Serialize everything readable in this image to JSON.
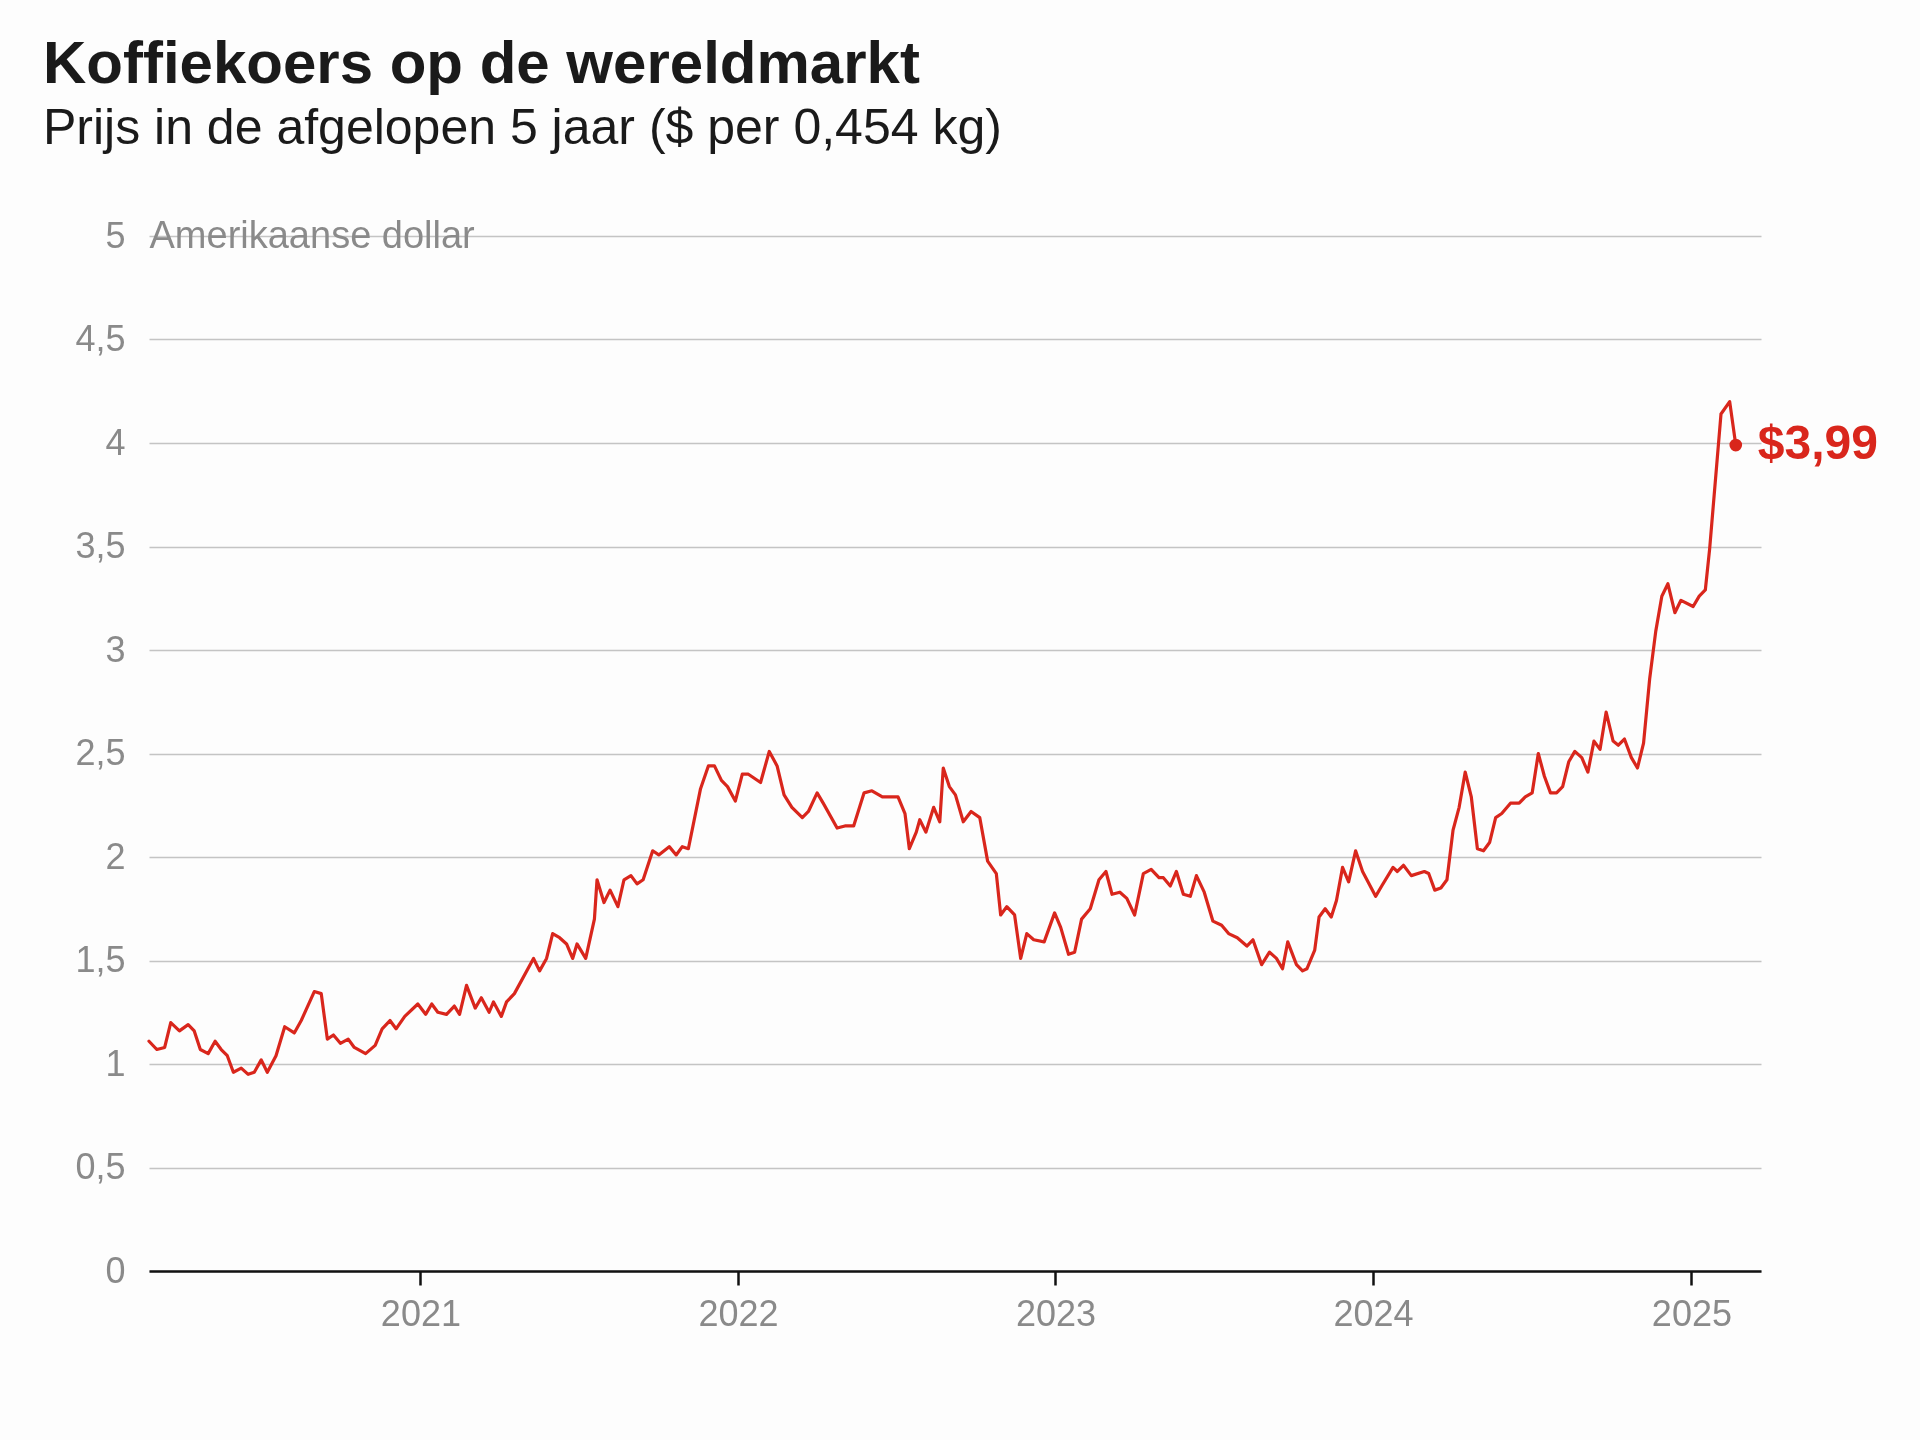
{
  "chart_data": {
    "type": "line",
    "title": "Koffiekoers op de wereldmarkt",
    "subtitle": "Prijs in de afgelopen 5 jaar ($ per 0,454 kg)",
    "ylabel": "Amerikaanse dollar",
    "x": [
      "2020-02-24",
      "2020-03-04",
      "2020-03-13",
      "2020-03-20",
      "2020-03-30",
      "2020-04-09",
      "2020-04-16",
      "2020-04-23",
      "2020-05-02",
      "2020-05-10",
      "2020-05-17",
      "2020-05-24",
      "2020-05-31",
      "2020-06-09",
      "2020-06-17",
      "2020-06-24",
      "2020-07-02",
      "2020-07-09",
      "2020-07-19",
      "2020-07-29",
      "2020-08-09",
      "2020-08-17",
      "2020-09-01",
      "2020-09-09",
      "2020-09-16",
      "2020-09-23",
      "2020-10-01",
      "2020-10-10",
      "2020-10-17",
      "2020-10-30",
      "2020-11-10",
      "2020-11-18",
      "2020-11-27",
      "2020-12-04",
      "2020-12-14",
      "2020-12-29",
      "2021-01-07",
      "2021-01-14",
      "2021-01-21",
      "2021-01-31",
      "2021-02-09",
      "2021-02-15",
      "2021-02-23",
      "2021-03-05",
      "2021-03-12",
      "2021-03-21",
      "2021-03-26",
      "2021-04-04",
      "2021-04-10",
      "2021-04-19",
      "2021-05-11",
      "2021-05-18",
      "2021-05-26",
      "2021-06-02",
      "2021-06-10",
      "2021-06-18",
      "2021-06-25",
      "2021-06-30",
      "2021-07-10",
      "2021-07-20",
      "2021-07-23",
      "2021-07-31",
      "2021-08-07",
      "2021-08-16",
      "2021-08-23",
      "2021-08-31",
      "2021-09-07",
      "2021-09-14",
      "2021-09-25",
      "2021-10-02",
      "2021-10-14",
      "2021-10-22",
      "2021-10-29",
      "2021-11-05",
      "2021-11-19",
      "2021-11-28",
      "2021-12-05",
      "2021-12-13",
      "2021-12-20",
      "2021-12-29",
      "2022-01-06",
      "2022-01-13",
      "2022-01-27",
      "2022-02-06",
      "2022-02-15",
      "2022-02-23",
      "2022-03-04",
      "2022-03-16",
      "2022-03-23",
      "2022-04-02",
      "2022-04-09",
      "2022-04-25",
      "2022-05-04",
      "2022-05-14",
      "2022-05-26",
      "2022-06-04",
      "2022-06-16",
      "2022-07-04",
      "2022-07-12",
      "2022-07-17",
      "2022-07-25",
      "2022-07-29",
      "2022-08-05",
      "2022-08-14",
      "2022-08-21",
      "2022-08-25",
      "2022-09-01",
      "2022-09-08",
      "2022-09-17",
      "2022-09-26",
      "2022-10-06",
      "2022-10-15",
      "2022-10-25",
      "2022-10-30",
      "2022-11-06",
      "2022-11-15",
      "2022-11-22",
      "2022-11-29",
      "2022-12-07",
      "2022-12-19",
      "2022-12-31",
      "2023-01-07",
      "2023-01-16",
      "2023-01-23",
      "2023-01-31",
      "2023-02-10",
      "2023-02-20",
      "2023-02-28",
      "2023-03-07",
      "2023-03-16",
      "2023-03-24",
      "2023-04-02",
      "2023-04-12",
      "2023-04-21",
      "2023-04-30",
      "2023-05-05",
      "2023-05-13",
      "2023-05-20",
      "2023-05-28",
      "2023-06-05",
      "2023-06-12",
      "2023-06-21",
      "2023-07-01",
      "2023-07-11",
      "2023-07-19",
      "2023-07-29",
      "2023-08-09",
      "2023-08-16",
      "2023-08-26",
      "2023-09-04",
      "2023-09-12",
      "2023-09-19",
      "2023-09-25",
      "2023-10-05",
      "2023-10-12",
      "2023-10-17",
      "2023-10-26",
      "2023-10-31",
      "2023-11-07",
      "2023-11-14",
      "2023-11-20",
      "2023-11-27",
      "2023-12-04",
      "2023-12-12",
      "2023-12-20",
      "2024-01-04",
      "2024-01-11",
      "2024-01-24",
      "2024-01-29",
      "2024-02-05",
      "2024-02-14",
      "2024-02-29",
      "2024-03-05",
      "2024-03-12",
      "2024-03-19",
      "2024-03-26",
      "2024-04-02",
      "2024-04-09",
      "2024-04-16",
      "2024-04-23",
      "2024-04-30",
      "2024-05-07",
      "2024-05-14",
      "2024-05-21",
      "2024-05-28",
      "2024-06-07",
      "2024-06-17",
      "2024-06-24",
      "2024-07-02",
      "2024-07-09",
      "2024-07-16",
      "2024-07-23",
      "2024-07-30",
      "2024-08-06",
      "2024-08-13",
      "2024-08-20",
      "2024-08-28",
      "2024-09-04",
      "2024-09-11",
      "2024-09-18",
      "2024-09-25",
      "2024-10-03",
      "2024-10-09",
      "2024-10-16",
      "2024-10-24",
      "2024-10-31",
      "2024-11-07",
      "2024-11-14",
      "2024-11-21",
      "2024-11-28",
      "2024-12-05",
      "2024-12-13",
      "2024-12-20",
      "2025-01-03",
      "2025-01-10",
      "2025-01-17",
      "2025-01-22",
      "2025-02-04",
      "2025-02-14",
      "2025-02-21"
    ],
    "values": [
      1.11,
      1.07,
      1.08,
      1.2,
      1.16,
      1.19,
      1.16,
      1.07,
      1.05,
      1.11,
      1.07,
      1.04,
      0.96,
      0.98,
      0.95,
      0.96,
      1.02,
      0.96,
      1.04,
      1.18,
      1.15,
      1.21,
      1.35,
      1.34,
      1.12,
      1.14,
      1.1,
      1.12,
      1.08,
      1.05,
      1.09,
      1.17,
      1.21,
      1.17,
      1.23,
      1.29,
      1.24,
      1.29,
      1.25,
      1.24,
      1.28,
      1.24,
      1.38,
      1.27,
      1.32,
      1.25,
      1.3,
      1.23,
      1.3,
      1.34,
      1.51,
      1.45,
      1.51,
      1.63,
      1.61,
      1.58,
      1.51,
      1.58,
      1.51,
      1.7,
      1.89,
      1.78,
      1.84,
      1.76,
      1.89,
      1.91,
      1.87,
      1.89,
      2.03,
      2.01,
      2.05,
      2.01,
      2.05,
      2.04,
      2.33,
      2.44,
      2.44,
      2.37,
      2.34,
      2.27,
      2.4,
      2.4,
      2.36,
      2.51,
      2.44,
      2.3,
      2.24,
      2.19,
      2.22,
      2.31,
      2.26,
      2.14,
      2.15,
      2.15,
      2.31,
      2.32,
      2.29,
      2.29,
      2.21,
      2.04,
      2.12,
      2.18,
      2.12,
      2.24,
      2.17,
      2.43,
      2.34,
      2.3,
      2.17,
      2.22,
      2.19,
      1.98,
      1.92,
      1.72,
      1.76,
      1.72,
      1.51,
      1.63,
      1.6,
      1.59,
      1.73,
      1.66,
      1.53,
      1.54,
      1.7,
      1.75,
      1.89,
      1.93,
      1.82,
      1.83,
      1.8,
      1.72,
      1.92,
      1.94,
      1.9,
      1.9,
      1.86,
      1.93,
      1.82,
      1.81,
      1.91,
      1.83,
      1.69,
      1.67,
      1.63,
      1.61,
      1.57,
      1.6,
      1.48,
      1.54,
      1.51,
      1.46,
      1.59,
      1.48,
      1.45,
      1.46,
      1.55,
      1.71,
      1.75,
      1.71,
      1.79,
      1.95,
      1.88,
      2.03,
      1.93,
      1.81,
      1.86,
      1.95,
      1.93,
      1.96,
      1.91,
      1.93,
      1.92,
      1.84,
      1.85,
      1.89,
      2.13,
      2.24,
      2.41,
      2.29,
      2.04,
      2.03,
      2.07,
      2.19,
      2.21,
      2.26,
      2.26,
      2.29,
      2.31,
      2.5,
      2.39,
      2.31,
      2.31,
      2.34,
      2.46,
      2.51,
      2.48,
      2.41,
      2.56,
      2.52,
      2.7,
      2.56,
      2.54,
      2.57,
      2.48,
      2.43,
      2.55,
      2.86,
      3.09,
      3.26,
      3.32,
      3.18,
      3.24,
      3.21,
      3.26,
      3.29,
      3.49,
      4.14,
      4.2,
      3.99
    ],
    "color": "#d9261c",
    "xlim": [
      "2020-02-24",
      "2025-03-22"
    ],
    "xticks": [
      "2021",
      "2022",
      "2023",
      "2024",
      "2025"
    ],
    "ylim": [
      0,
      5
    ],
    "yticks": [
      0,
      {
        "value": 0.5,
        "label": "0,5"
      },
      1,
      {
        "value": 1.5,
        "label": "1,5"
      },
      2,
      {
        "value": 2.5,
        "label": "2,5"
      },
      3,
      {
        "value": 3.5,
        "label": "3,5"
      },
      4,
      {
        "value": 4.5,
        "label": "4,5"
      },
      5
    ],
    "grid": "y",
    "annotations": [
      {
        "text": "$3,99",
        "x": "2025-02-21",
        "y": 3.99
      }
    ]
  }
}
